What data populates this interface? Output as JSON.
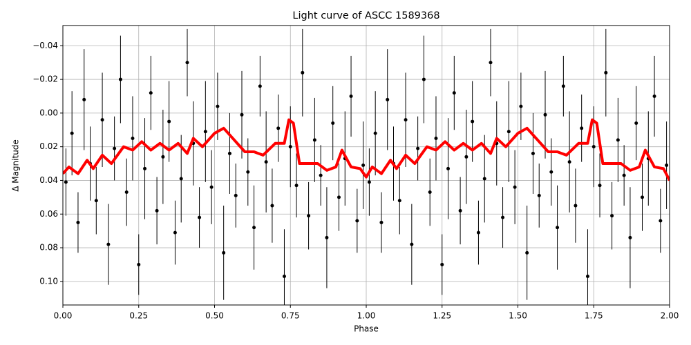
{
  "chart_data": {
    "type": "scatter",
    "title": "Light curve of ASCC 1589368",
    "xlabel": "Phase",
    "ylabel": "Δ Magnitude",
    "xlim": [
      0,
      2
    ],
    "ylim": [
      -0.052,
      0.114
    ],
    "y_inverted": true,
    "grid": true,
    "xticks": [
      {
        "value": 0,
        "label": "0.00"
      },
      0.25,
      {
        "value": 0.5,
        "label": "0.50"
      },
      0.75,
      {
        "value": 1,
        "label": "1.00"
      },
      1.25,
      {
        "value": 1.5,
        "label": "1.50"
      },
      1.75,
      {
        "value": 2,
        "label": "2.00"
      }
    ],
    "yticks": [
      {
        "value": -0.04,
        "label": "−0.04"
      },
      {
        "value": -0.02,
        "label": "−0.02"
      },
      {
        "value": 0,
        "label": "0.00"
      },
      0.02,
      0.04,
      0.06,
      0.08,
      {
        "value": 0.1,
        "label": "0.10"
      }
    ],
    "points": {
      "color": "#000000",
      "x": [
        0.01,
        0.03,
        0.05,
        0.07,
        0.09,
        0.11,
        0.13,
        0.15,
        0.17,
        0.19,
        0.21,
        0.23,
        0.25,
        0.27,
        0.29,
        0.31,
        0.33,
        0.35,
        0.37,
        0.39,
        0.41,
        0.43,
        0.45,
        0.47,
        0.49,
        0.51,
        0.53,
        0.55,
        0.57,
        0.59,
        0.61,
        0.63,
        0.65,
        0.67,
        0.69,
        0.71,
        0.73,
        0.75,
        0.77,
        0.79,
        0.81,
        0.83,
        0.85,
        0.87,
        0.89,
        0.91,
        0.93,
        0.95,
        0.97,
        0.99,
        1.01,
        1.03,
        1.05,
        1.07,
        1.09,
        1.11,
        1.13,
        1.15,
        1.17,
        1.19,
        1.21,
        1.23,
        1.25,
        1.27,
        1.29,
        1.31,
        1.33,
        1.35,
        1.37,
        1.39,
        1.41,
        1.43,
        1.45,
        1.47,
        1.49,
        1.51,
        1.53,
        1.55,
        1.57,
        1.59,
        1.61,
        1.63,
        1.65,
        1.67,
        1.69,
        1.71,
        1.73,
        1.75,
        1.77,
        1.79,
        1.81,
        1.83,
        1.85,
        1.87,
        1.89,
        1.91,
        1.93,
        1.95,
        1.97,
        1.99
      ],
      "y": [
        0.041,
        0.012,
        0.065,
        -0.008,
        0.03,
        0.052,
        0.004,
        0.078,
        0.021,
        -0.02,
        0.047,
        0.015,
        0.09,
        0.033,
        -0.012,
        0.058,
        0.026,
        0.005,
        0.071,
        0.039,
        -0.03,
        0.018,
        0.062,
        0.011,
        0.044,
        -0.004,
        0.083,
        0.024,
        0.049,
        0.001,
        0.035,
        0.068,
        -0.016,
        0.029,
        0.055,
        0.009,
        0.097,
        0.02,
        0.043,
        -0.024,
        0.061,
        0.016,
        0.037,
        0.074,
        0.006,
        0.05,
        0.027,
        -0.01,
        0.064,
        0.031,
        0.041,
        0.012,
        0.065,
        -0.008,
        0.03,
        0.052,
        0.004,
        0.078,
        0.021,
        -0.02,
        0.047,
        0.015,
        0.09,
        0.033,
        -0.012,
        0.058,
        0.026,
        0.005,
        0.071,
        0.039,
        -0.03,
        0.018,
        0.062,
        0.011,
        0.044,
        -0.004,
        0.083,
        0.024,
        0.049,
        0.001,
        0.035,
        0.068,
        -0.016,
        0.029,
        0.055,
        0.009,
        0.097,
        0.02,
        0.043,
        -0.024,
        0.061,
        0.016,
        0.037,
        0.074,
        0.006,
        0.05,
        0.027,
        -0.01,
        0.064,
        0.031
      ],
      "yerr": [
        0.02,
        0.025,
        0.018,
        0.03,
        0.022,
        0.02,
        0.028,
        0.024,
        0.019,
        0.026,
        0.02,
        0.025,
        0.018,
        0.03,
        0.022,
        0.02,
        0.028,
        0.024,
        0.019,
        0.026,
        0.02,
        0.025,
        0.018,
        0.03,
        0.022,
        0.02,
        0.028,
        0.024,
        0.019,
        0.026,
        0.02,
        0.025,
        0.018,
        0.03,
        0.022,
        0.02,
        0.028,
        0.024,
        0.019,
        0.026,
        0.02,
        0.025,
        0.018,
        0.03,
        0.022,
        0.02,
        0.028,
        0.024,
        0.019,
        0.026,
        0.02,
        0.025,
        0.018,
        0.03,
        0.022,
        0.02,
        0.028,
        0.024,
        0.019,
        0.026,
        0.02,
        0.025,
        0.018,
        0.03,
        0.022,
        0.02,
        0.028,
        0.024,
        0.019,
        0.026,
        0.02,
        0.025,
        0.018,
        0.03,
        0.022,
        0.02,
        0.028,
        0.024,
        0.019,
        0.026,
        0.02,
        0.025,
        0.018,
        0.03,
        0.022,
        0.02,
        0.028,
        0.024,
        0.019,
        0.026,
        0.02,
        0.025,
        0.018,
        0.03,
        0.022,
        0.02,
        0.028,
        0.024,
        0.019,
        0.026
      ]
    },
    "curve": {
      "color": "#ff0000",
      "x": [
        0,
        0.02,
        0.05,
        0.08,
        0.1,
        0.13,
        0.16,
        0.2,
        0.23,
        0.26,
        0.29,
        0.32,
        0.35,
        0.38,
        0.41,
        0.43,
        0.46,
        0.5,
        0.53,
        0.56,
        0.6,
        0.63,
        0.66,
        0.7,
        0.73,
        0.745,
        0.76,
        0.78,
        0.81,
        0.84,
        0.87,
        0.9,
        0.92,
        0.95,
        0.98,
        1,
        1.02,
        1.05,
        1.08,
        1.1,
        1.13,
        1.16,
        1.2,
        1.23,
        1.26,
        1.29,
        1.32,
        1.35,
        1.38,
        1.41,
        1.43,
        1.46,
        1.5,
        1.53,
        1.56,
        1.6,
        1.63,
        1.66,
        1.7,
        1.73,
        1.745,
        1.76,
        1.78,
        1.81,
        1.84,
        1.87,
        1.9,
        1.92,
        1.95,
        1.98,
        2
      ],
      "y": [
        0.036,
        0.032,
        0.036,
        0.028,
        0.033,
        0.025,
        0.03,
        0.02,
        0.022,
        0.017,
        0.022,
        0.018,
        0.022,
        0.018,
        0.024,
        0.015,
        0.02,
        0.012,
        0.009,
        0.015,
        0.023,
        0.023,
        0.025,
        0.018,
        0.018,
        0.004,
        0.006,
        0.03,
        0.03,
        0.03,
        0.034,
        0.032,
        0.022,
        0.032,
        0.033,
        0.038,
        0.032,
        0.036,
        0.028,
        0.033,
        0.025,
        0.03,
        0.02,
        0.022,
        0.017,
        0.022,
        0.018,
        0.022,
        0.018,
        0.024,
        0.015,
        0.02,
        0.012,
        0.009,
        0.015,
        0.023,
        0.023,
        0.025,
        0.018,
        0.018,
        0.004,
        0.006,
        0.03,
        0.03,
        0.03,
        0.034,
        0.032,
        0.022,
        0.032,
        0.033,
        0.04
      ]
    }
  }
}
